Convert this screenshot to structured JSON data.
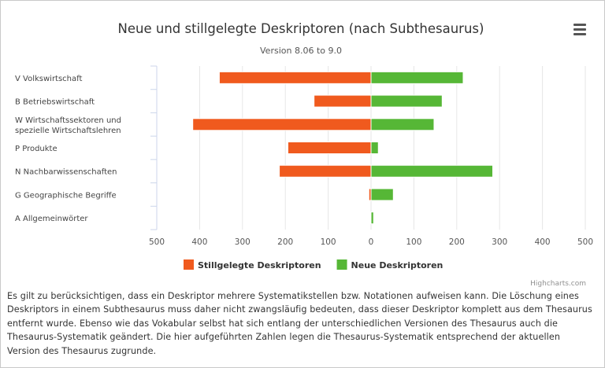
{
  "chart_data": {
    "type": "bar",
    "orientation": "horizontal",
    "title": "Neue und stillgelegte Deskriptoren (nach Subthesaurus)",
    "subtitle": "Version 8.06 to 9.0",
    "categories": [
      "V Volkswirtschaft",
      "B Betriebswirtschaft",
      "W Wirtschaftssektoren und spezielle Wirtschaftslehren",
      "P Produkte",
      "N Nachbarwissenschaften",
      "G Geographische Begriffe",
      "A Allgemeinwörter"
    ],
    "category_lines": [
      [
        "V Volkswirtschaft"
      ],
      [
        "B Betriebswirtschaft"
      ],
      [
        "W Wirtschaftssektoren und",
        "spezielle Wirtschaftslehren"
      ],
      [
        "P Produkte"
      ],
      [
        "N Nachbarwissenschaften"
      ],
      [
        "G Geographische Begriffe"
      ],
      [
        "A Allgemeinwörter"
      ]
    ],
    "series": [
      {
        "name": "Stillgelegte Deskriptoren",
        "color": "#f05a1e",
        "direction": "left",
        "values": [
          354,
          133,
          416,
          194,
          214,
          5,
          0
        ]
      },
      {
        "name": "Neue Deskriptoren",
        "color": "#56b736",
        "direction": "right",
        "values": [
          215,
          166,
          147,
          17,
          284,
          52,
          6
        ]
      }
    ],
    "xlim": [
      -500,
      500
    ],
    "x_ticks": [
      "500",
      "400",
      "300",
      "200",
      "100",
      "0",
      "100",
      "200",
      "300",
      "400",
      "500"
    ],
    "grid": true,
    "legend_position": "bottom-center"
  },
  "credits": "Highcharts.com",
  "description": "Es gilt zu berücksichtigen, dass ein Deskriptor mehrere Systematikstellen bzw. Notationen aufweisen kann. Die Löschung eines Deskriptors in einem Subthesaurus muss daher nicht zwangsläufig bedeuten, dass dieser Deskriptor komplett aus dem Thesaurus entfernt wurde. Ebenso wie das Vokabular selbst hat sich entlang der unterschiedlichen Versionen des Thesaurus auch die Thesaurus-Systematik geändert. Die hier aufgeführten Zahlen legen die Thesaurus-Systematik entsprechend der aktuellen Version des Thesaurus zugrunde."
}
